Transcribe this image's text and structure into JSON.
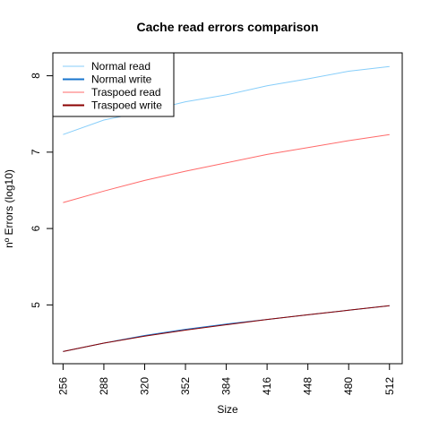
{
  "chart_data": {
    "type": "line",
    "title": "Cache read errors comparison",
    "xlabel": "Size",
    "ylabel": "nº Errors (log10)",
    "x": [
      256,
      288,
      320,
      352,
      384,
      416,
      448,
      480,
      512
    ],
    "x_ticks": [
      "256",
      "288",
      "320",
      "352",
      "384",
      "416",
      "448",
      "480",
      "512"
    ],
    "y_ticks": [
      "5",
      "6",
      "7",
      "8"
    ],
    "xlim": [
      248,
      522
    ],
    "ylim": [
      4.23,
      8.3
    ],
    "grid": false,
    "legend_position": "top-left",
    "series": [
      {
        "name": "Normal read",
        "color": "#87cefa",
        "values": [
          7.23,
          7.42,
          7.53,
          7.66,
          7.75,
          7.87,
          7.96,
          8.06,
          8.12
        ]
      },
      {
        "name": "Normal write",
        "color": "#1874cd",
        "values": [
          4.39,
          4.5,
          4.6,
          4.68,
          4.75,
          4.81,
          4.87,
          4.93,
          4.99
        ]
      },
      {
        "name": "Traspoed read",
        "color": "#ff6a6a",
        "values": [
          6.34,
          6.49,
          6.63,
          6.75,
          6.86,
          6.97,
          7.06,
          7.15,
          7.23
        ]
      },
      {
        "name": "Traspoed write",
        "color": "#8b0000",
        "values": [
          4.39,
          4.5,
          4.59,
          4.67,
          4.74,
          4.81,
          4.87,
          4.93,
          4.99
        ]
      }
    ]
  }
}
